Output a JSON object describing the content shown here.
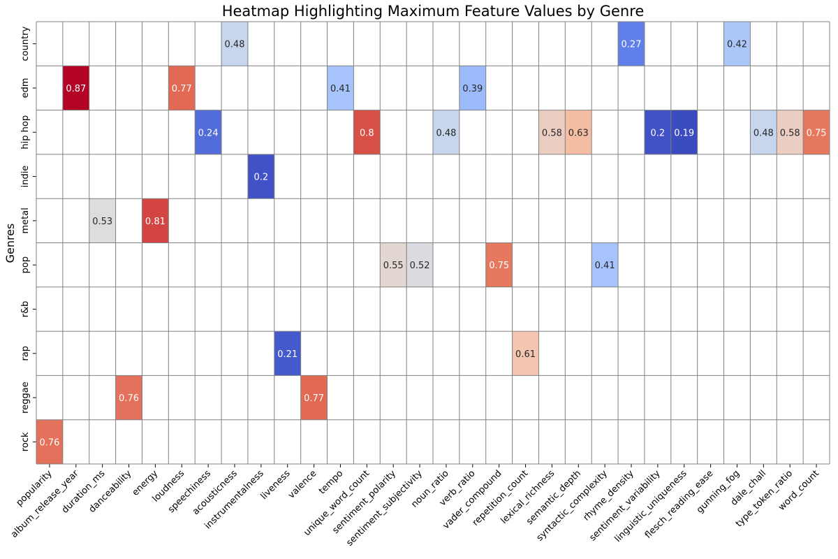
{
  "chart_data": {
    "type": "heatmap",
    "title": "Heatmap Highlighting Maximum Feature Values by Genre",
    "ylabel": "Genres",
    "xlabel": "",
    "colormap": "coolwarm",
    "grid": true,
    "x": [
      "popularity",
      "album_release_year",
      "duration_ms",
      "danceability",
      "energy",
      "loudness",
      "speechiness",
      "acousticness",
      "instrumentalness",
      "liveness",
      "valence",
      "tempo",
      "unique_word_count",
      "sentiment_polarity",
      "sentiment_subjectivity",
      "noun_ratio",
      "verb_ratio",
      "vader_compound",
      "repetition_count",
      "lexical_richness",
      "semantic_depth",
      "syntactic_complexity",
      "rhyme_density",
      "sentiment_variability",
      "linguistic_uniqueness",
      "flesch_reading_ease",
      "gunning_fog",
      "dale_chall",
      "type_token_ratio",
      "word_count"
    ],
    "y": [
      "country",
      "edm",
      "hip hop",
      "indie",
      "metal",
      "pop",
      "r&b",
      "rap",
      "reggae",
      "rock"
    ],
    "cells": [
      {
        "row": "country",
        "col": "acousticness",
        "value": 0.48
      },
      {
        "row": "country",
        "col": "rhyme_density",
        "value": 0.27
      },
      {
        "row": "country",
        "col": "gunning_fog",
        "value": 0.42
      },
      {
        "row": "edm",
        "col": "album_release_year",
        "value": 0.87
      },
      {
        "row": "edm",
        "col": "loudness",
        "value": 0.77
      },
      {
        "row": "edm",
        "col": "tempo",
        "value": 0.41
      },
      {
        "row": "edm",
        "col": "verb_ratio",
        "value": 0.39
      },
      {
        "row": "hip hop",
        "col": "speechiness",
        "value": 0.24
      },
      {
        "row": "hip hop",
        "col": "unique_word_count",
        "value": 0.8
      },
      {
        "row": "hip hop",
        "col": "noun_ratio",
        "value": 0.48
      },
      {
        "row": "hip hop",
        "col": "lexical_richness",
        "value": 0.58
      },
      {
        "row": "hip hop",
        "col": "semantic_depth",
        "value": 0.63
      },
      {
        "row": "hip hop",
        "col": "sentiment_variability",
        "value": 0.2
      },
      {
        "row": "hip hop",
        "col": "linguistic_uniqueness",
        "value": 0.19
      },
      {
        "row": "hip hop",
        "col": "dale_chall",
        "value": 0.48
      },
      {
        "row": "hip hop",
        "col": "type_token_ratio",
        "value": 0.58
      },
      {
        "row": "hip hop",
        "col": "word_count",
        "value": 0.75
      },
      {
        "row": "indie",
        "col": "instrumentalness",
        "value": 0.2
      },
      {
        "row": "metal",
        "col": "duration_ms",
        "value": 0.53
      },
      {
        "row": "metal",
        "col": "energy",
        "value": 0.81
      },
      {
        "row": "pop",
        "col": "sentiment_polarity",
        "value": 0.55
      },
      {
        "row": "pop",
        "col": "sentiment_subjectivity",
        "value": 0.52
      },
      {
        "row": "pop",
        "col": "vader_compound",
        "value": 0.75
      },
      {
        "row": "pop",
        "col": "syntactic_complexity",
        "value": 0.41
      },
      {
        "row": "rap",
        "col": "liveness",
        "value": 0.21
      },
      {
        "row": "rap",
        "col": "repetition_count",
        "value": 0.61
      },
      {
        "row": "reggae",
        "col": "danceability",
        "value": 0.76
      },
      {
        "row": "reggae",
        "col": "valence",
        "value": 0.77
      },
      {
        "row": "rock",
        "col": "popularity",
        "value": 0.76
      }
    ]
  }
}
